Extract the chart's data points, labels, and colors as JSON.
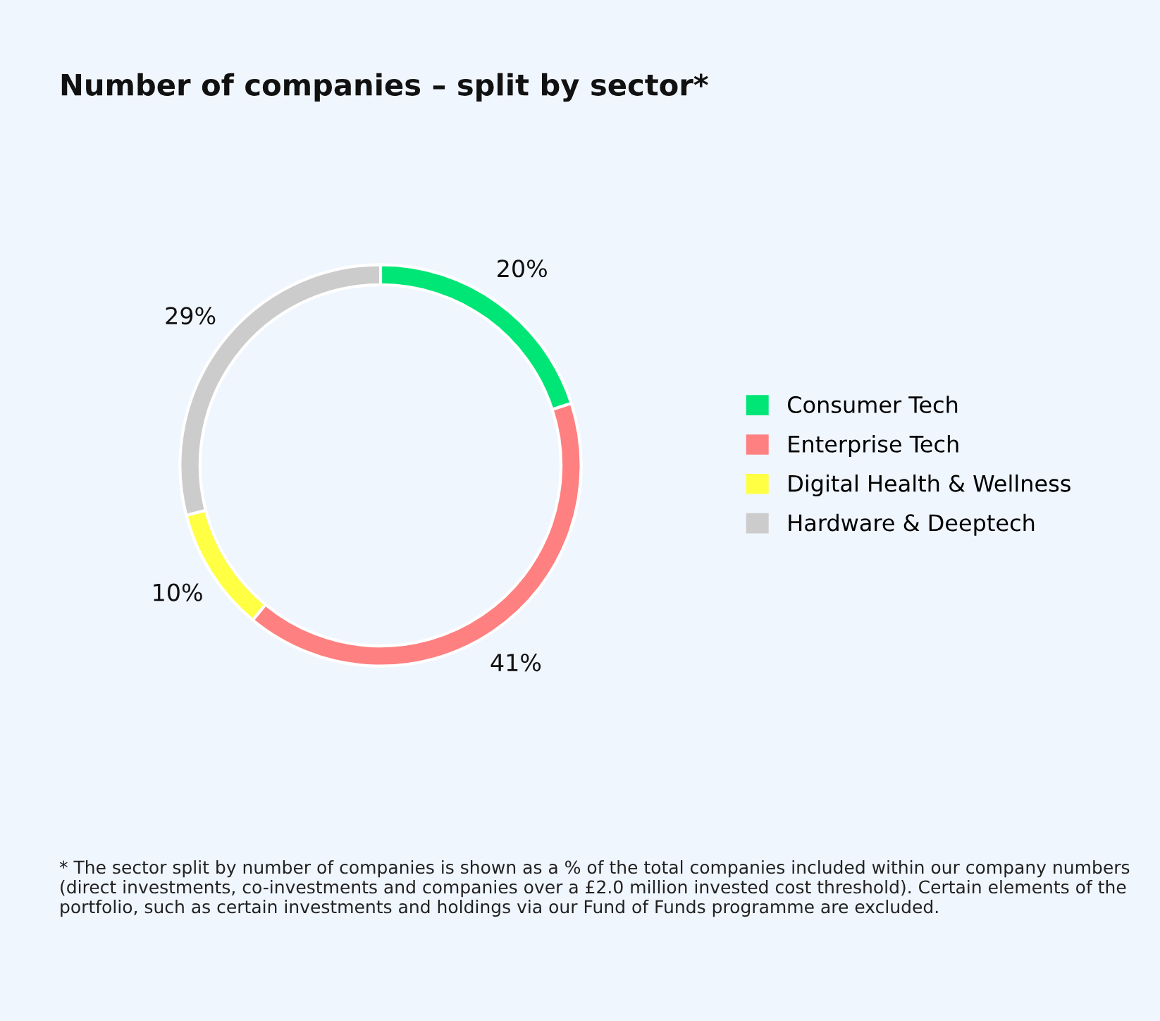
{
  "chart_data": {
    "type": "donut",
    "title": "Number of companies – split by sector*",
    "categories": [
      "Consumer Tech",
      "Enterprise Tech",
      "Digital Health & Wellness",
      "Hardware & Deeptech"
    ],
    "values": [
      20,
      41,
      10,
      29
    ],
    "colors": [
      "#00e676",
      "#ff8080",
      "#ffff44",
      "#cccccc"
    ],
    "value_labels": [
      "20%",
      "41%",
      "10%",
      "29%"
    ],
    "legend": "right",
    "annotations": [
      "* The sector split by number of companies is shown as a % of the total companies included within our company numbers (direct investments, co-investments and companies over a £2.0 million invested cost threshold). Certain elements of the portfolio, such as certain investments and holdings via our Fund of Funds programme are excluded."
    ]
  }
}
